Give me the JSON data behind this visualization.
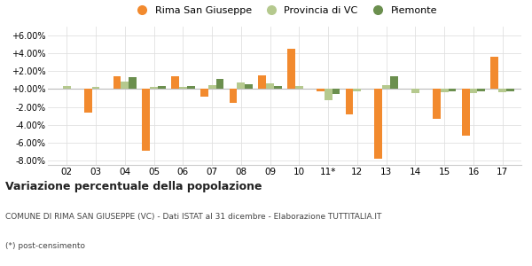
{
  "categories": [
    "02",
    "03",
    "04",
    "05",
    "06",
    "07",
    "08",
    "09",
    "10",
    "11*",
    "12",
    "13",
    "14",
    "15",
    "16",
    "17"
  ],
  "rima": [
    0.0,
    -2.6,
    1.4,
    -6.9,
    1.4,
    -0.8,
    -1.5,
    1.5,
    4.5,
    -0.3,
    -2.8,
    -7.8,
    0.0,
    -3.3,
    -5.2,
    3.6
  ],
  "provincia": [
    0.3,
    0.2,
    0.8,
    0.2,
    0.2,
    0.4,
    0.7,
    0.6,
    0.3,
    -1.2,
    -0.3,
    0.4,
    -0.5,
    -0.4,
    -0.5,
    -0.4
  ],
  "piemonte": [
    0.0,
    0.0,
    1.3,
    0.3,
    0.3,
    1.1,
    0.5,
    0.3,
    0.0,
    -0.6,
    0.0,
    1.4,
    0.0,
    -0.3,
    -0.3,
    -0.3
  ],
  "color_rima": "#f28a2e",
  "color_provincia": "#b5c98e",
  "color_piemonte": "#6b8f4e",
  "legend_labels": [
    "Rima San Giuseppe",
    "Provincia di VC",
    "Piemonte"
  ],
  "title": "Variazione percentuale della popolazione",
  "subtitle": "COMUNE DI RIMA SAN GIUSEPPE (VC) - Dati ISTAT al 31 dicembre - Elaborazione TUTTITALIA.IT",
  "footnote": "(*) post-censimento",
  "ylim": [
    -8.5,
    7.0
  ],
  "yticks": [
    -8.0,
    -6.0,
    -4.0,
    -2.0,
    0.0,
    2.0,
    4.0,
    6.0
  ],
  "bar_width": 0.27,
  "bg_color": "#ffffff",
  "grid_color": "#e0e0e0"
}
